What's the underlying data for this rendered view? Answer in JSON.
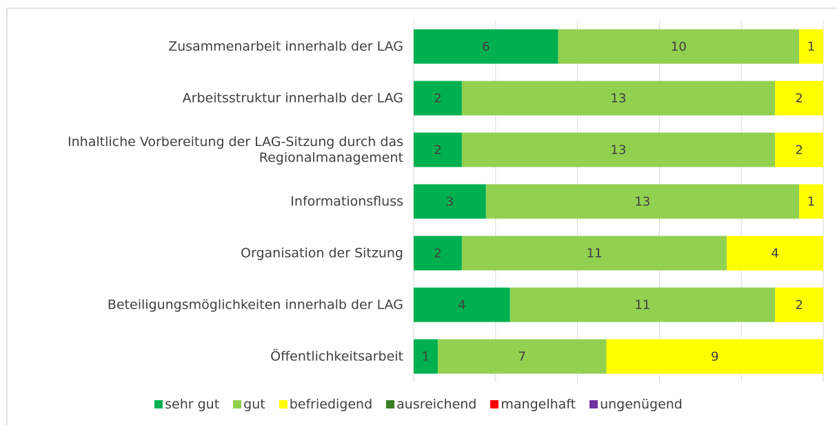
{
  "chart_data": {
    "type": "stacked_barh",
    "categories": [
      "Zusammenarbeit innerhalb der LAG",
      "Arbeitsstruktur innerhalb der LAG",
      "Inhaltliche Vorbereitung der LAG-Sitzung durch das Regionalmanagement",
      "Informationsfluss",
      "Organisation der Sitzung",
      "Beteiligungsmöglichkeiten innerhalb der LAG",
      "Öffentlichkeitsarbeit"
    ],
    "series": [
      {
        "name": "sehr gut",
        "color": "#00b050",
        "values": [
          6,
          2,
          2,
          3,
          2,
          4,
          1
        ]
      },
      {
        "name": "gut",
        "color": "#92d050",
        "values": [
          10,
          13,
          13,
          13,
          11,
          11,
          7
        ]
      },
      {
        "name": "befriedigend",
        "color": "#ffff00",
        "values": [
          1,
          2,
          2,
          1,
          4,
          2,
          9
        ]
      },
      {
        "name": "ausreichend",
        "color": "#3a7d22",
        "values": [
          0,
          0,
          0,
          0,
          0,
          0,
          0
        ]
      },
      {
        "name": "mangelhaft",
        "color": "#ff0000",
        "values": [
          0,
          0,
          0,
          0,
          0,
          0,
          0
        ]
      },
      {
        "name": "ungenügend",
        "color": "#7030a0",
        "values": [
          0,
          0,
          0,
          0,
          0,
          0,
          0
        ]
      }
    ],
    "xlim": [
      0,
      17
    ],
    "xticks": [
      0,
      3.4,
      6.8,
      10.2,
      13.6,
      17
    ],
    "grid": true,
    "legend": "bottom"
  }
}
